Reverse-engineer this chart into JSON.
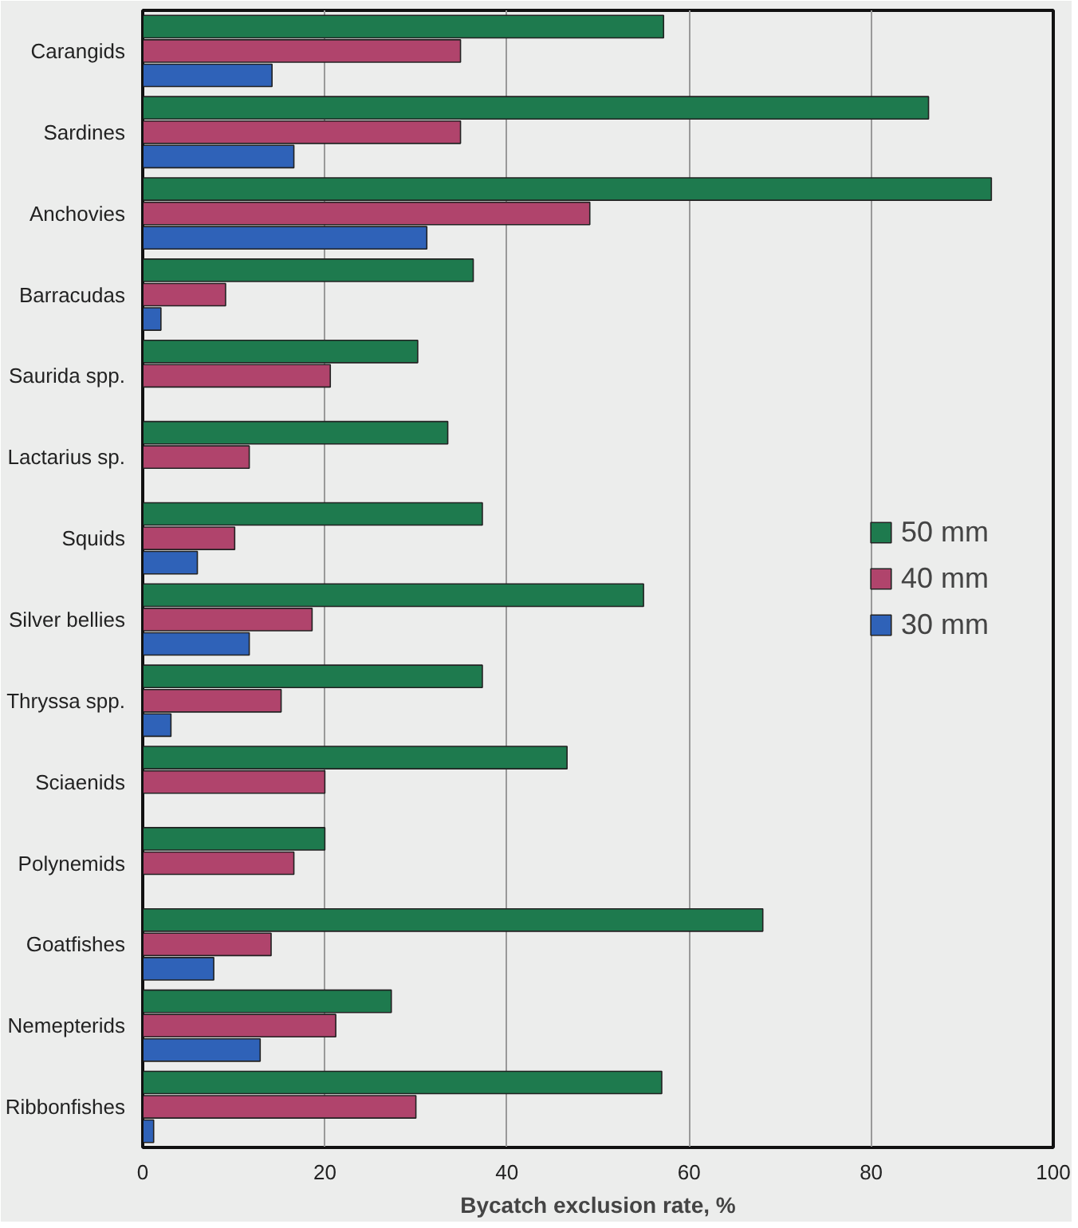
{
  "chart_data": {
    "type": "bar",
    "orientation": "horizontal",
    "xlabel": "Bycatch exclusion rate, %",
    "categories": [
      "Carangids",
      "Sardines",
      "Anchovies",
      "Barracudas",
      "Saurida spp.",
      "Lactarius sp.",
      "Squids",
      "Silver bellies",
      "Thryssa spp.",
      "Sciaenids",
      "Polynemids",
      "Goatfishes",
      "Nemepterids",
      "Ribbonfishes"
    ],
    "series": [
      {
        "name": "50 mm",
        "color": "#1e7a4e",
        "values": [
          57.2,
          86.3,
          93.2,
          36.3,
          30.2,
          33.5,
          37.3,
          55.0,
          37.3,
          46.6,
          20.0,
          68.1,
          27.3,
          57.0
        ]
      },
      {
        "name": "40 mm",
        "color": "#b0446c",
        "values": [
          34.9,
          34.9,
          49.1,
          9.1,
          20.6,
          11.7,
          10.1,
          18.6,
          15.2,
          20.0,
          16.6,
          14.1,
          21.2,
          30.0
        ]
      },
      {
        "name": "30 mm",
        "color": "#2f62b8",
        "values": [
          14.2,
          16.6,
          31.2,
          2.0,
          null,
          null,
          6.0,
          11.7,
          3.1,
          null,
          null,
          7.8,
          12.9,
          1.2
        ]
      }
    ],
    "xlim": [
      0,
      100
    ],
    "xticks": [
      0,
      20,
      40,
      60,
      80,
      100
    ],
    "grid": "x",
    "legend": "right"
  }
}
